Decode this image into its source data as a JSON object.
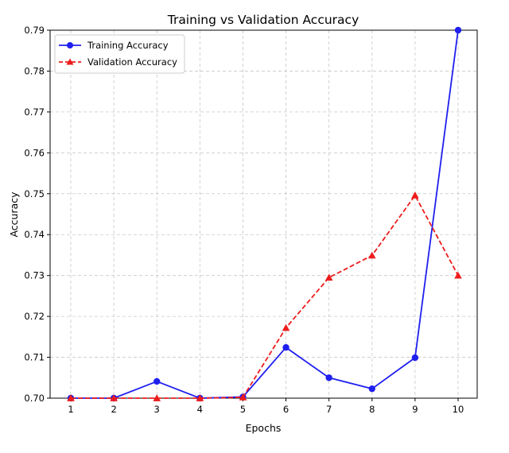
{
  "chart_data": {
    "type": "line",
    "title": "Training vs Validation Accuracy",
    "xlabel": "Epochs",
    "ylabel": "Accuracy",
    "x": [
      1,
      2,
      3,
      4,
      5,
      6,
      7,
      8,
      9,
      10
    ],
    "ylim": [
      0.7,
      0.79
    ],
    "yticks": [
      "0.70",
      "0.71",
      "0.72",
      "0.73",
      "0.74",
      "0.75",
      "0.76",
      "0.77",
      "0.78",
      "0.79"
    ],
    "xticks": [
      "1",
      "2",
      "3",
      "4",
      "5",
      "6",
      "7",
      "8",
      "9",
      "10"
    ],
    "grid": true,
    "legend_position": "top-left",
    "series": [
      {
        "name": "Training Accuracy",
        "color": "#1f1fef",
        "marker": "circle",
        "line_style": "solid",
        "values": [
          0.7,
          0.7,
          0.7041,
          0.7,
          0.7003,
          0.7124,
          0.705,
          0.7023,
          0.7099,
          0.79
        ]
      },
      {
        "name": "Validation Accuracy",
        "color": "#ee1c1c",
        "marker": "triangle",
        "line_style": "dashed",
        "values": [
          0.7,
          0.7,
          0.7,
          0.7,
          0.7002,
          0.7172,
          0.7295,
          0.7349,
          0.7496,
          0.73
        ]
      }
    ]
  }
}
